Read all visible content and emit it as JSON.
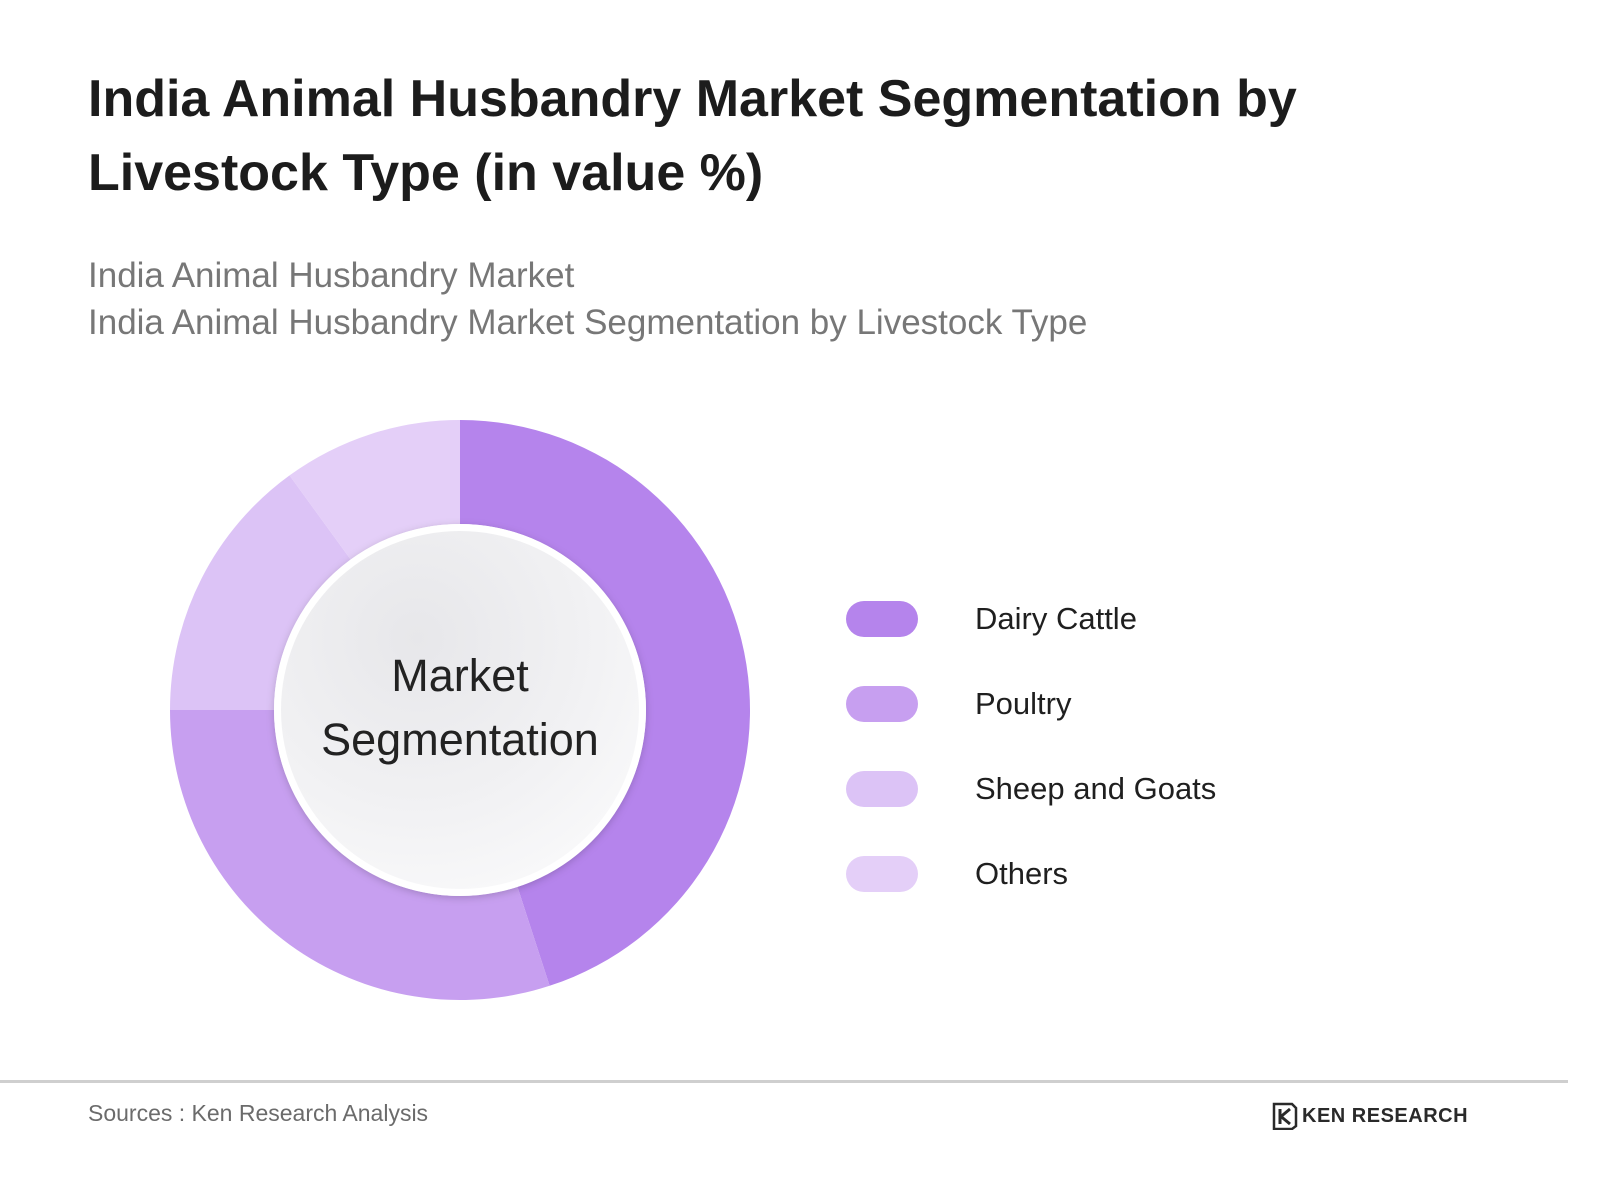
{
  "header": {
    "title": "India Animal Husbandry Market Segmentation by Livestock Type (in value %)",
    "subtitle_line1": "India Animal Husbandry Market",
    "subtitle_line2": "India Animal Husbandry Market Segmentation by Livestock Type"
  },
  "chart_data": {
    "type": "pie",
    "variant": "donut",
    "center_label_line1": "Market",
    "center_label_line2": "Segmentation",
    "legend_position": "right",
    "categories": [
      "Dairy Cattle",
      "Poultry",
      "Sheep and Goats",
      "Others"
    ],
    "values": [
      45,
      30,
      15,
      10
    ],
    "colors": [
      "#b584ec",
      "#c79ff0",
      "#dcc3f6",
      "#e4cff8"
    ]
  },
  "footer": {
    "source": "Sources : Ken Research Analysis",
    "brand": "KEN RESEARCH",
    "logo_icon": "ken-research-k-logo"
  }
}
